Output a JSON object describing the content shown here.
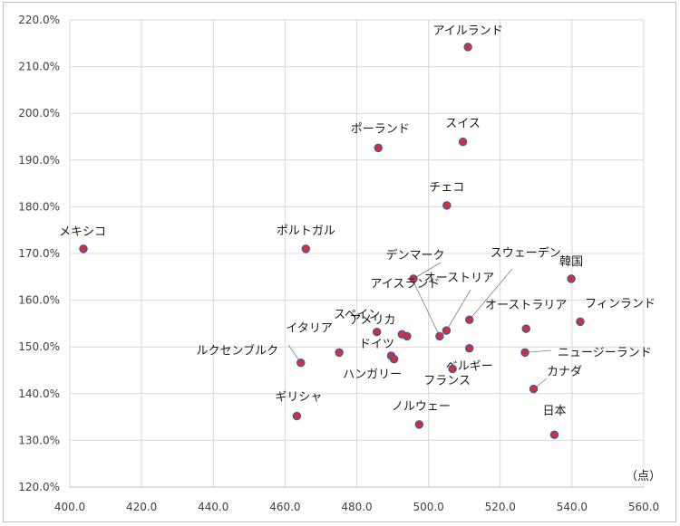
{
  "chart_data": {
    "type": "scatter",
    "title": "",
    "xlabel": "",
    "ylabel": "",
    "x_unit_label": "（点）",
    "xlim": [
      400,
      560
    ],
    "ylim": [
      120,
      220
    ],
    "x_ticks": [
      "400.0",
      "420.0",
      "440.0",
      "460.0",
      "480.0",
      "500.0",
      "520.0",
      "540.0",
      "560.0"
    ],
    "y_ticks": [
      "120.0%",
      "130.0%",
      "140.0%",
      "150.0%",
      "160.0%",
      "170.0%",
      "180.0%",
      "190.0%",
      "200.0%",
      "210.0%",
      "220.0%"
    ],
    "grid": true,
    "marker_fill": "#e8262f",
    "marker_edge": "#3b5ea8",
    "points": [
      {
        "label": "アイルランド",
        "x": 511.0,
        "y": 214.2
      },
      {
        "label": "スイス",
        "x": 509.6,
        "y": 193.9
      },
      {
        "label": "ポーランド",
        "x": 486.0,
        "y": 192.6
      },
      {
        "label": "チェコ",
        "x": 505.1,
        "y": 180.3
      },
      {
        "label": "メキシコ",
        "x": 403.8,
        "y": 171.0
      },
      {
        "label": "ポルトガル",
        "x": 465.8,
        "y": 171.0
      },
      {
        "label": "韓国",
        "x": 539.8,
        "y": 164.6
      },
      {
        "label": "デンマーク",
        "x": 495.8,
        "y": 164.6
      },
      {
        "label": "スウェーデン",
        "x": 511.4,
        "y": 155.8
      },
      {
        "label": "フィンランド",
        "x": 542.3,
        "y": 155.4
      },
      {
        "label": "オーストラリア",
        "x": 527.2,
        "y": 153.9
      },
      {
        "label": "オーストリア",
        "x": 505.0,
        "y": 153.5
      },
      {
        "label": "スペイン",
        "x": 485.6,
        "y": 153.2
      },
      {
        "label": "アメリカ",
        "x": 494.0,
        "y": 152.3
      },
      {
        "label": "",
        "x": 492.6,
        "y": 152.7
      },
      {
        "label": "アイスランド",
        "x": 503.1,
        "y": 152.3
      },
      {
        "label": "ベルギー",
        "x": 511.4,
        "y": 149.7
      },
      {
        "label": "イタリア",
        "x": 475.1,
        "y": 148.8
      },
      {
        "label": "ニュージーランド",
        "x": 526.9,
        "y": 148.8
      },
      {
        "label": "ドイツ",
        "x": 489.6,
        "y": 148.1
      },
      {
        "label": "ルクセンブルク",
        "x": 464.4,
        "y": 146.6
      },
      {
        "label": "ハンガリー",
        "x": 490.4,
        "y": 147.4
      },
      {
        "label": "フランス",
        "x": 506.7,
        "y": 145.3
      },
      {
        "label": "カナダ",
        "x": 529.3,
        "y": 141.0
      },
      {
        "label": "ギリシャ",
        "x": 463.3,
        "y": 135.2
      },
      {
        "label": "ノルウェー",
        "x": 497.4,
        "y": 133.4
      },
      {
        "label": "日本",
        "x": 535.1,
        "y": 131.2
      }
    ]
  }
}
